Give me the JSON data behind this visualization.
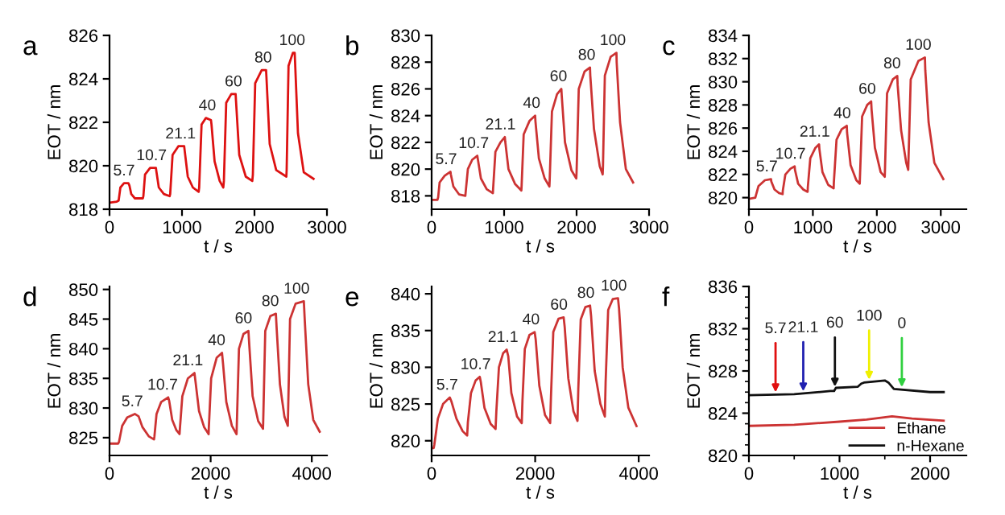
{
  "chart_data": [
    {
      "type": "line",
      "title": "a",
      "xlabel": "t / s",
      "ylabel": "EOT / nm",
      "xlim": [
        0,
        3000
      ],
      "xticks": [
        0,
        1000,
        2000,
        3000
      ],
      "ylim": [
        818,
        826
      ],
      "yticks": [
        818,
        820,
        822,
        824,
        826
      ],
      "series": [
        {
          "color": "#dd1111",
          "x": [
            0,
            100,
            126,
            150,
            200,
            260,
            274,
            300,
            350,
            460,
            467,
            490,
            560,
            640,
            644,
            680,
            750,
            830,
            837,
            870,
            950,
            1030,
            1037,
            1080,
            1150,
            1230,
            1237,
            1270,
            1330,
            1400,
            1407,
            1450,
            1520,
            1570,
            1578,
            1610,
            1680,
            1740,
            1745,
            1790,
            1880,
            1970,
            1978,
            2010,
            2100,
            2160,
            2165,
            2210,
            2300,
            2440,
            2444,
            2470,
            2530,
            2555,
            2560,
            2600,
            2680,
            2815
          ],
          "values": [
            818.3,
            818.35,
            818.4,
            819.0,
            819.2,
            819.2,
            819.1,
            818.7,
            818.5,
            818.5,
            818.6,
            819.6,
            819.9,
            819.9,
            819.8,
            819.0,
            818.7,
            818.6,
            818.7,
            820.5,
            820.9,
            820.9,
            820.7,
            819.5,
            819.0,
            818.8,
            819.0,
            821.9,
            822.2,
            822.1,
            821.9,
            820.2,
            819.3,
            819.0,
            819.3,
            822.9,
            823.3,
            823.3,
            823.0,
            820.5,
            819.5,
            819.3,
            819.6,
            823.8,
            824.4,
            824.4,
            824.1,
            821.0,
            819.8,
            819.5,
            819.8,
            824.6,
            825.2,
            825.2,
            824.8,
            821.5,
            819.7,
            819.4
          ]
        }
      ],
      "annotations": [
        {
          "text": "5.7",
          "x": 200,
          "y": 819.2
        },
        {
          "text": "10.7",
          "x": 580,
          "y": 819.9
        },
        {
          "text": "21.1",
          "x": 980,
          "y": 820.9
        },
        {
          "text": "40",
          "x": 1350,
          "y": 822.2
        },
        {
          "text": "60",
          "x": 1710,
          "y": 823.3
        },
        {
          "text": "80",
          "x": 2120,
          "y": 824.4
        },
        {
          "text": "100",
          "x": 2520,
          "y": 825.2
        }
      ]
    },
    {
      "type": "line",
      "title": "b",
      "xlabel": "t / s",
      "ylabel": "EOT / nm",
      "xlim": [
        0,
        3000
      ],
      "xticks": [
        0,
        1000,
        2000,
        3000
      ],
      "ylim": [
        817,
        830
      ],
      "yticks": [
        818,
        820,
        822,
        824,
        826,
        828,
        830
      ],
      "series": [
        {
          "color": "#cc3333",
          "x": [
            0,
            80,
            90,
            110,
            180,
            260,
            265,
            300,
            380,
            465,
            470,
            500,
            560,
            630,
            636,
            680,
            760,
            845,
            848,
            880,
            950,
            1010,
            1015,
            1060,
            1150,
            1238,
            1242,
            1270,
            1350,
            1428,
            1432,
            1480,
            1560,
            1625,
            1629,
            1660,
            1730,
            1790,
            1795,
            1840,
            1930,
            1996,
            2000,
            2030,
            2110,
            2185,
            2189,
            2240,
            2320,
            2360,
            2364,
            2390,
            2470,
            2550,
            2553,
            2600,
            2680,
            2780
          ],
          "values": [
            817.7,
            817.7,
            817.9,
            819.0,
            819.5,
            819.8,
            819.6,
            818.7,
            818.1,
            818.0,
            818.3,
            820.0,
            820.7,
            821.0,
            820.8,
            819.3,
            818.5,
            818.2,
            818.5,
            821.3,
            822.0,
            822.4,
            822.1,
            820.0,
            818.9,
            818.4,
            818.8,
            822.6,
            823.6,
            824.0,
            823.6,
            820.8,
            819.3,
            818.7,
            819.2,
            824.3,
            825.6,
            826.0,
            825.5,
            822.0,
            819.9,
            819.3,
            819.8,
            826.0,
            827.3,
            827.6,
            827.0,
            823.0,
            820.2,
            819.6,
            820.2,
            827.0,
            828.4,
            828.7,
            828.0,
            823.5,
            820.0,
            819.0
          ]
        }
      ],
      "annotations": [
        {
          "text": "5.7",
          "x": 200,
          "y": 819.8
        },
        {
          "text": "10.7",
          "x": 580,
          "y": 821.0
        },
        {
          "text": "21.1",
          "x": 950,
          "y": 822.4
        },
        {
          "text": "40",
          "x": 1380,
          "y": 824.0
        },
        {
          "text": "60",
          "x": 1750,
          "y": 826.0
        },
        {
          "text": "80",
          "x": 2140,
          "y": 827.6
        },
        {
          "text": "100",
          "x": 2500,
          "y": 828.7
        }
      ]
    },
    {
      "type": "line",
      "title": "c",
      "xlabel": "t / s",
      "ylabel": "EOT / nm",
      "xlim": [
        0,
        3400
      ],
      "xticks": [
        0,
        1000,
        2000,
        3000
      ],
      "ylim": [
        819,
        834
      ],
      "yticks": [
        820,
        822,
        824,
        826,
        828,
        830,
        832,
        834
      ],
      "series": [
        {
          "color": "#cc3333",
          "x": [
            0,
            100,
            110,
            150,
            250,
            345,
            350,
            400,
            470,
            527,
            530,
            570,
            650,
            715,
            720,
            770,
            850,
            918,
            921,
            960,
            1040,
            1097,
            1102,
            1150,
            1240,
            1325,
            1328,
            1370,
            1450,
            1530,
            1535,
            1590,
            1680,
            1733,
            1736,
            1770,
            1850,
            1912,
            1918,
            1970,
            2060,
            2124,
            2127,
            2160,
            2250,
            2320,
            2326,
            2380,
            2460,
            2491,
            2494,
            2530,
            2650,
            2752,
            2758,
            2810,
            2900,
            3040
          ],
          "values": [
            819.9,
            820.0,
            820.2,
            821.0,
            821.5,
            821.6,
            821.4,
            820.7,
            820.4,
            820.3,
            820.6,
            822.0,
            822.5,
            822.7,
            822.4,
            821.2,
            820.7,
            820.5,
            820.9,
            823.4,
            824.3,
            824.6,
            824.2,
            822.2,
            821.1,
            820.8,
            821.3,
            825.0,
            825.9,
            826.2,
            825.6,
            822.8,
            821.5,
            821.2,
            821.7,
            827.0,
            828.0,
            828.3,
            827.6,
            824.3,
            822.2,
            821.8,
            822.3,
            829.0,
            830.2,
            830.5,
            829.7,
            825.8,
            823.0,
            822.4,
            823.0,
            830.2,
            831.8,
            832.1,
            831.0,
            826.5,
            823.0,
            821.6
          ]
        }
      ],
      "annotations": [
        {
          "text": "5.7",
          "x": 280,
          "y": 821.6
        },
        {
          "text": "10.7",
          "x": 650,
          "y": 822.7
        },
        {
          "text": "21.1",
          "x": 1030,
          "y": 824.6
        },
        {
          "text": "40",
          "x": 1460,
          "y": 826.2
        },
        {
          "text": "60",
          "x": 1850,
          "y": 828.3
        },
        {
          "text": "80",
          "x": 2240,
          "y": 830.5
        },
        {
          "text": "100",
          "x": 2650,
          "y": 832.1
        }
      ]
    },
    {
      "type": "line",
      "title": "d",
      "xlabel": "t / s",
      "ylabel": "EOT / nm",
      "xlim": [
        0,
        4300
      ],
      "xticks": [
        0,
        2000,
        4000
      ],
      "ylim": [
        822,
        850.5
      ],
      "yticks": [
        825,
        830,
        835,
        840,
        845,
        850
      ],
      "series": [
        {
          "color": "#cc3333",
          "x": [
            0,
            170,
            188,
            250,
            350,
            500,
            575,
            650,
            780,
            880,
            888,
            930,
            1020,
            1160,
            1180,
            1240,
            1320,
            1385,
            1389,
            1440,
            1550,
            1680,
            1700,
            1770,
            1870,
            1960,
            1963,
            2010,
            2120,
            2225,
            2245,
            2310,
            2420,
            2512,
            2517,
            2560,
            2650,
            2747,
            2765,
            2830,
            2940,
            3035,
            3039,
            3080,
            3180,
            3290,
            3305,
            3370,
            3460,
            3526,
            3530,
            3570,
            3680,
            3843,
            3860,
            3930,
            4030,
            4157
          ],
          "values": [
            824.0,
            824.0,
            824.3,
            827.0,
            828.4,
            829.0,
            828.6,
            826.8,
            825.2,
            824.7,
            825.2,
            829.0,
            831.0,
            831.8,
            831.2,
            828.0,
            826.3,
            825.6,
            826.2,
            832.0,
            835.0,
            835.9,
            834.5,
            829.5,
            826.8,
            825.6,
            826.5,
            835.0,
            838.5,
            839.3,
            837.5,
            831.0,
            827.0,
            825.6,
            827.0,
            840.0,
            842.5,
            843.0,
            840.5,
            832.0,
            827.8,
            826.5,
            827.5,
            843.0,
            845.5,
            845.9,
            843.5,
            834.0,
            828.5,
            827.0,
            828.5,
            845.0,
            847.6,
            848.0,
            845.0,
            834.0,
            828.0,
            826.0
          ]
        }
      ],
      "annotations": [
        {
          "text": "5.7",
          "x": 450,
          "y": 829.0
        },
        {
          "text": "10.7",
          "x": 1050,
          "y": 831.8
        },
        {
          "text": "21.1",
          "x": 1550,
          "y": 835.9
        },
        {
          "text": "40",
          "x": 2120,
          "y": 839.3
        },
        {
          "text": "60",
          "x": 2650,
          "y": 843.0
        },
        {
          "text": "80",
          "x": 3180,
          "y": 845.9
        },
        {
          "text": "100",
          "x": 3700,
          "y": 848.0
        }
      ]
    },
    {
      "type": "line",
      "title": "e",
      "xlabel": "t / s",
      "ylabel": "EOT / nm",
      "xlim": [
        0,
        4200
      ],
      "xticks": [
        0,
        2000,
        4000
      ],
      "ylim": [
        818,
        841
      ],
      "yticks": [
        820,
        825,
        830,
        835,
        840
      ],
      "series": [
        {
          "color": "#cc3333",
          "x": [
            0,
            40,
            53,
            120,
            220,
            350,
            380,
            480,
            600,
            686,
            700,
            760,
            850,
            930,
            950,
            1020,
            1140,
            1235,
            1250,
            1300,
            1380,
            1450,
            1480,
            1540,
            1650,
            1741,
            1755,
            1800,
            1890,
            1990,
            2010,
            2080,
            2190,
            2290,
            2305,
            2350,
            2450,
            2550,
            2570,
            2640,
            2740,
            2818,
            2833,
            2880,
            2970,
            3060,
            3080,
            3150,
            3260,
            3346,
            3361,
            3410,
            3500,
            3600,
            3620,
            3690,
            3800,
            3958
          ],
          "values": [
            819.0,
            819.0,
            819.5,
            823.0,
            825.0,
            825.9,
            825.4,
            823.0,
            821.3,
            820.7,
            822.5,
            826.5,
            828.2,
            828.7,
            828.0,
            824.5,
            822.3,
            821.6,
            824.0,
            830.0,
            831.9,
            832.4,
            831.5,
            826.5,
            823.3,
            822.4,
            825.5,
            832.5,
            834.4,
            834.8,
            833.8,
            827.5,
            823.5,
            822.4,
            826.0,
            834.8,
            836.6,
            836.8,
            835.5,
            828.5,
            824.0,
            822.7,
            827.0,
            836.5,
            838.2,
            838.4,
            837.0,
            829.5,
            825.0,
            823.3,
            828.0,
            837.8,
            839.3,
            839.4,
            838.0,
            830.0,
            824.5,
            822.0
          ]
        }
      ],
      "annotations": [
        {
          "text": "5.7",
          "x": 300,
          "y": 825.9
        },
        {
          "text": "10.7",
          "x": 850,
          "y": 828.7
        },
        {
          "text": "21.1",
          "x": 1380,
          "y": 832.4
        },
        {
          "text": "40",
          "x": 1920,
          "y": 834.8
        },
        {
          "text": "60",
          "x": 2460,
          "y": 836.8
        },
        {
          "text": "80",
          "x": 2980,
          "y": 838.4
        },
        {
          "text": "100",
          "x": 3520,
          "y": 839.4
        }
      ]
    },
    {
      "type": "line",
      "title": "f",
      "xlabel": "t / s",
      "ylabel": "EOT / nm",
      "xlim": [
        0,
        2400
      ],
      "xticks": [
        0,
        {
          "value": 500,
          "label": null
        },
        1000,
        {
          "value": 1500,
          "label": null
        },
        2000
      ],
      "ylim": [
        820,
        836
      ],
      "yticks": [
        820,
        {
          "value": 821,
          "label": null
        },
        {
          "value": 822,
          "label": null
        },
        {
          "value": 823,
          "label": null
        },
        824,
        {
          "value": 825,
          "label": null
        },
        {
          "value": 826,
          "label": null
        },
        {
          "value": 827,
          "label": null
        },
        828,
        {
          "value": 829,
          "label": null
        },
        {
          "value": 830,
          "label": null
        },
        {
          "value": 831,
          "label": null
        },
        832,
        {
          "value": 833,
          "label": null
        },
        {
          "value": 834,
          "label": null
        },
        {
          "value": 835,
          "label": null
        },
        836
      ],
      "legend": "bottom right",
      "series": [
        {
          "name": "Ethane",
          "color": "#cc3333",
          "x": [
            0,
            500,
            1000,
            1300,
            1580,
            1800,
            2150
          ],
          "values": [
            822.8,
            822.9,
            823.2,
            823.4,
            823.7,
            823.5,
            823.3
          ]
        },
        {
          "name": "n-Hexane",
          "color": "#111111",
          "x": [
            0,
            500,
            900,
            940,
            960,
            1200,
            1240,
            1270,
            1500,
            1540,
            1600,
            2000,
            2150
          ],
          "values": [
            825.7,
            825.8,
            826.1,
            826.1,
            826.4,
            826.5,
            826.8,
            826.9,
            827.1,
            826.9,
            826.3,
            826.0,
            826.0
          ]
        }
      ],
      "annotations": [
        {
          "text": "5.7",
          "x": 294,
          "y": 825.77
        },
        {
          "text": "21.1",
          "x": 600,
          "y": 825.86
        },
        {
          "text": "60",
          "x": 949,
          "y": 826.3
        },
        {
          "text": "100",
          "x": 1327,
          "y": 826.96
        },
        {
          "text": "0",
          "x": 1688,
          "y": 826.25
        }
      ]
    }
  ]
}
